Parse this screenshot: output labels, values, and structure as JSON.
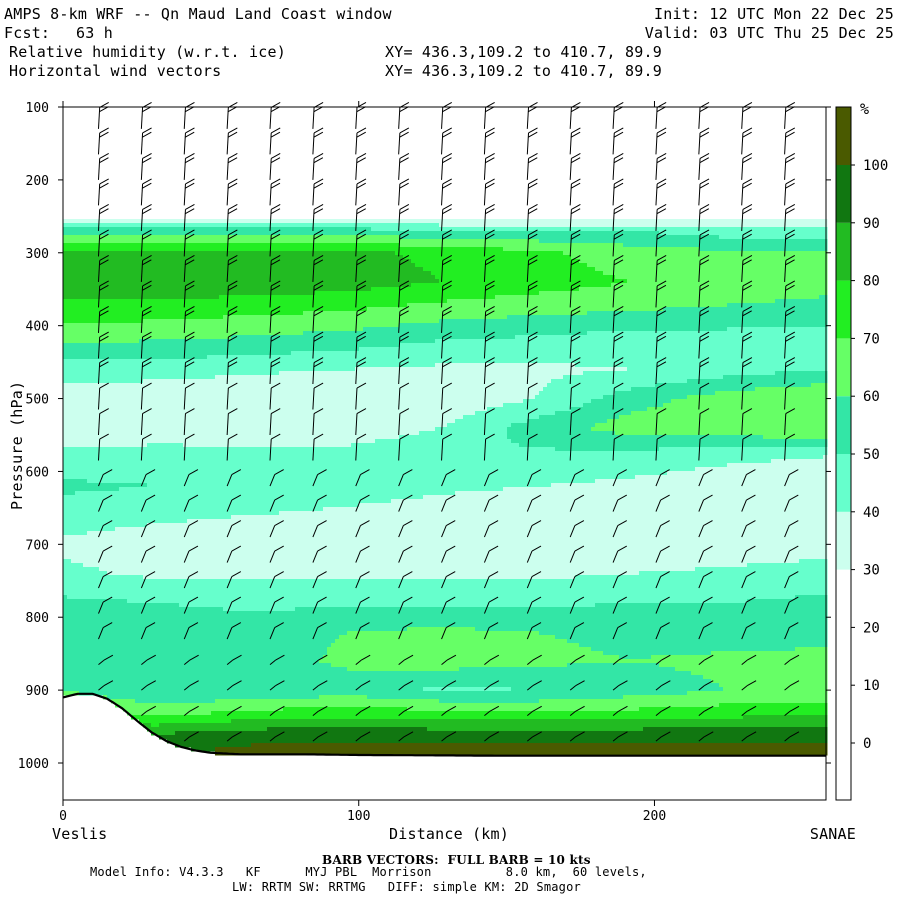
{
  "header": {
    "title": "AMPS 8-km WRF -- Qn Maud Land Coast window",
    "fcst_label": "Fcst:",
    "fcst_value": "63 h",
    "init": "Init: 12 UTC Mon 22 Dec 25",
    "valid": "Valid: 03 UTC Thu 25 Dec 25",
    "field1": "Relative humidity (w.r.t. ice)",
    "field2": "Horizontal wind vectors",
    "xy1": "XY= 436.3,109.2 to 410.7, 89.9",
    "xy2": "XY= 436.3,109.2 to 410.7, 89.9"
  },
  "footer": {
    "barb_note": "BARB VECTORS:  FULL BARB = 10 kts",
    "model_info": "Model Info: V4.3.3   KF      MYJ PBL  Morrison          8.0 km,  60 levels,",
    "model_info2": "LW: RRTM SW: RRTMG   DIFF: simple KM: 2D Smagor"
  },
  "chart_data": {
    "type": "heatmap",
    "title": "Relative humidity (w.r.t. ice) cross-section with horizontal wind barbs",
    "xlabel": "Distance (km)",
    "ylabel": "Pressure (hPa)",
    "xlim": [
      0,
      258
    ],
    "ylim": [
      1050,
      100
    ],
    "x_ticks": [
      0,
      100,
      200
    ],
    "y_ticks": [
      100,
      200,
      300,
      400,
      500,
      600,
      700,
      800,
      900,
      1000
    ],
    "left_endpoint": "Veslis",
    "right_endpoint": "SANAE",
    "colorbar": {
      "unit": "%",
      "ticks": [
        0,
        10,
        20,
        30,
        40,
        50,
        60,
        70,
        80,
        90,
        100
      ],
      "levels": [
        {
          "from": 30,
          "to": 40,
          "color": "#ccffee"
        },
        {
          "from": 40,
          "to": 50,
          "color": "#66ffcc"
        },
        {
          "from": 50,
          "to": 60,
          "color": "#33e6a6"
        },
        {
          "from": 60,
          "to": 70,
          "color": "#66ff66"
        },
        {
          "from": 70,
          "to": 80,
          "color": "#22ee22"
        },
        {
          "from": 80,
          "to": 90,
          "color": "#22bb22"
        },
        {
          "from": 90,
          "to": 100,
          "color": "#117711"
        },
        {
          "from": 100,
          "to": 110,
          "color": "#4a5a00"
        }
      ]
    },
    "rh_bands": [
      {
        "p": 100,
        "rh": [
          25,
          25,
          25,
          25,
          25,
          25,
          25,
          25,
          25
        ]
      },
      {
        "p": 250,
        "rh": [
          25,
          25,
          25,
          25,
          25,
          25,
          25,
          25,
          25
        ]
      },
      {
        "p": 270,
        "rh": [
          55,
          55,
          55,
          55,
          50,
          50,
          50,
          45,
          45
        ]
      },
      {
        "p": 300,
        "rh": [
          85,
          85,
          85,
          82,
          78,
          72,
          65,
          62,
          60
        ]
      },
      {
        "p": 340,
        "rh": [
          88,
          88,
          87,
          85,
          80,
          75,
          70,
          68,
          65
        ]
      },
      {
        "p": 380,
        "rh": [
          75,
          75,
          72,
          70,
          65,
          62,
          60,
          58,
          55
        ]
      },
      {
        "p": 420,
        "rh": [
          62,
          60,
          58,
          55,
          50,
          48,
          45,
          45,
          45
        ]
      },
      {
        "p": 460,
        "rh": [
          45,
          45,
          42,
          40,
          38,
          38,
          40,
          45,
          50
        ]
      },
      {
        "p": 500,
        "rh": [
          35,
          32,
          30,
          30,
          32,
          40,
          55,
          65,
          70
        ]
      },
      {
        "p": 540,
        "rh": [
          35,
          33,
          32,
          32,
          40,
          55,
          65,
          68,
          70
        ]
      },
      {
        "p": 580,
        "rh": [
          42,
          45,
          45,
          45,
          50,
          48,
          45,
          42,
          40
        ]
      },
      {
        "p": 620,
        "rh": [
          52,
          50,
          48,
          45,
          42,
          40,
          38,
          35,
          32
        ]
      },
      {
        "p": 660,
        "rh": [
          45,
          42,
          40,
          38,
          35,
          33,
          32,
          32,
          32
        ]
      },
      {
        "p": 700,
        "rh": [
          38,
          35,
          33,
          32,
          32,
          32,
          32,
          33,
          35
        ]
      },
      {
        "p": 740,
        "rh": [
          42,
          38,
          38,
          38,
          38,
          38,
          40,
          42,
          45
        ]
      },
      {
        "p": 780,
        "rh": [
          52,
          50,
          48,
          48,
          48,
          48,
          50,
          50,
          52
        ]
      },
      {
        "p": 820,
        "rh": [
          58,
          55,
          55,
          60,
          62,
          60,
          58,
          55,
          58
        ]
      },
      {
        "p": 860,
        "rh": [
          52,
          50,
          55,
          62,
          65,
          62,
          60,
          62,
          62
        ]
      },
      {
        "p": 900,
        "rh": [
          60,
          52,
          50,
          55,
          48,
          50,
          55,
          60,
          62
        ]
      },
      {
        "p": 930,
        "rh": [
          70,
          65,
          72,
          75,
          72,
          70,
          72,
          75,
          78
        ]
      },
      {
        "p": 960,
        "rh": [
          90,
          90,
          95,
          95,
          95,
          95,
          95,
          95,
          95
        ]
      },
      {
        "p": 990,
        "rh": [
          100,
          100,
          105,
          105,
          105,
          105,
          105,
          105,
          105
        ]
      }
    ],
    "rh_band_x_km": [
      0,
      32,
      64,
      96,
      128,
      160,
      192,
      224,
      258
    ],
    "terrain": {
      "x_km": [
        0,
        5,
        10,
        15,
        20,
        25,
        30,
        35,
        40,
        45,
        50,
        60,
        80,
        100,
        150,
        200,
        258
      ],
      "p_hpa": [
        910,
        905,
        905,
        912,
        925,
        942,
        958,
        970,
        978,
        983,
        986,
        988,
        988,
        989,
        990,
        990,
        990
      ]
    }
  }
}
